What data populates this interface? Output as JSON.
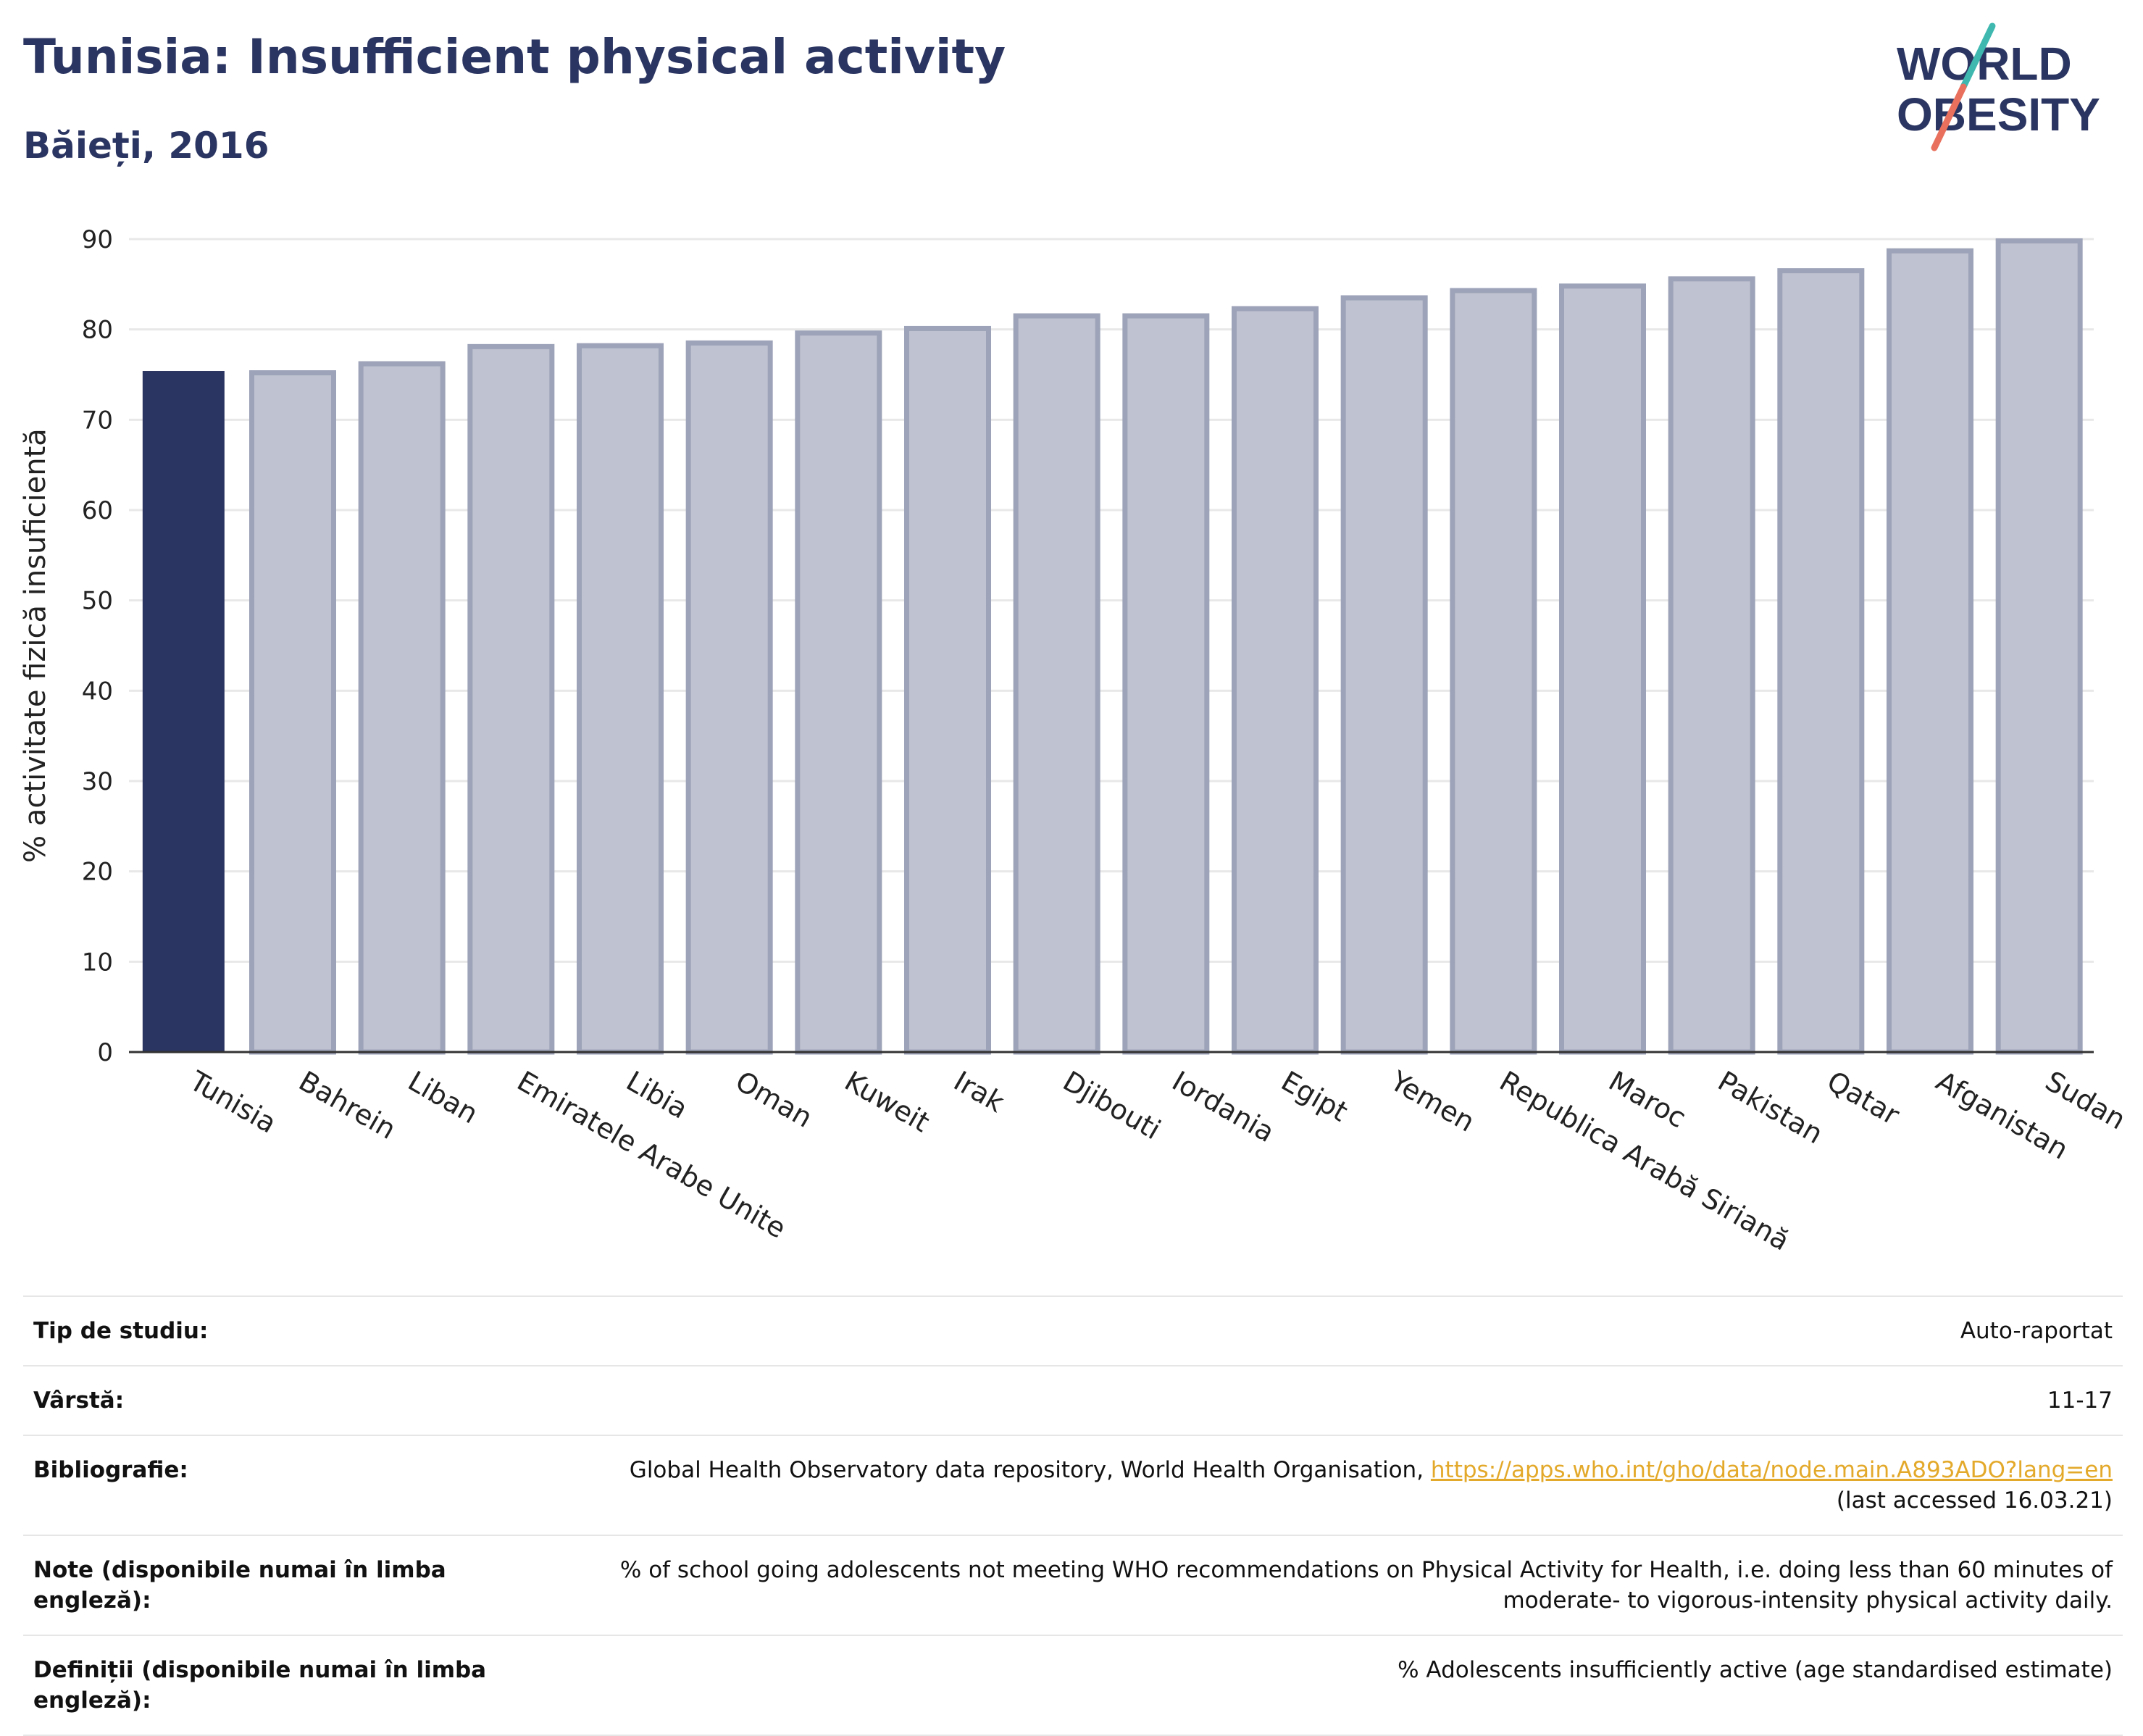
{
  "header": {
    "title": "Tunisia: Insufficient physical activity",
    "subtitle": "Băieți, 2016",
    "logo_line1": "WORLD",
    "logo_line2": "OBESITY"
  },
  "colors": {
    "highlight_bar": "#2b3561",
    "other_bar_fill": "#bfc2d0",
    "other_bar_stroke": "#9da3b8",
    "title": "#2b3561",
    "link": "#e3a92a",
    "logo_teal": "#3fb8b0",
    "logo_coral": "#e8705d"
  },
  "chart_data": {
    "type": "bar",
    "ylabel": "% activitate fizică insuficientă",
    "ylim": [
      0,
      90
    ],
    "yticks": [
      0,
      10,
      20,
      30,
      40,
      50,
      60,
      70,
      80,
      90
    ],
    "grid": true,
    "highlight": "Tunisia",
    "categories": [
      "Tunisia",
      "Bahrein",
      "Liban",
      "Emiratele Arabe Unite",
      "Libia",
      "Oman",
      "Kuweit",
      "Irak",
      "Djibouti",
      "Iordania",
      "Egipt",
      "Yemen",
      "Republica Arabă Siriană",
      "Maroc",
      "Pakistan",
      "Qatar",
      "Afganistan",
      "Sudan"
    ],
    "values": [
      75.4,
      75.2,
      76.2,
      78.1,
      78.2,
      78.5,
      79.6,
      80.1,
      81.5,
      81.5,
      82.3,
      83.5,
      84.3,
      84.8,
      85.6,
      86.5,
      88.7,
      89.8
    ]
  },
  "info": {
    "study_type_label": "Tip de studiu:",
    "study_type_value": "Auto-raportat",
    "age_label": "Vârstă:",
    "age_value": "11-17",
    "bibliography_label": "Bibliografie:",
    "bibliography_text": "Global Health Observatory data repository, World Health Organisation,",
    "bibliography_link": "https://apps.who.int/gho/data/node.main.A893ADO?lang=en",
    "bibliography_accessed": "(last accessed 16.03.21)",
    "notes_label": "Note (disponibile numai în limba engleză):",
    "notes_line1": "% of school going adolescents not meeting WHO recommendations on Physical Activity for Health, i.e. doing less than 60 minutes of",
    "notes_line2": "moderate- to vigorous-intensity physical activity daily.",
    "definitions_label_line1": "Definiții (disponibile numai în limba",
    "definitions_label_line2": "engleză):",
    "definitions_value": "% Adolescents insufficiently active (age standardised estimate)"
  }
}
